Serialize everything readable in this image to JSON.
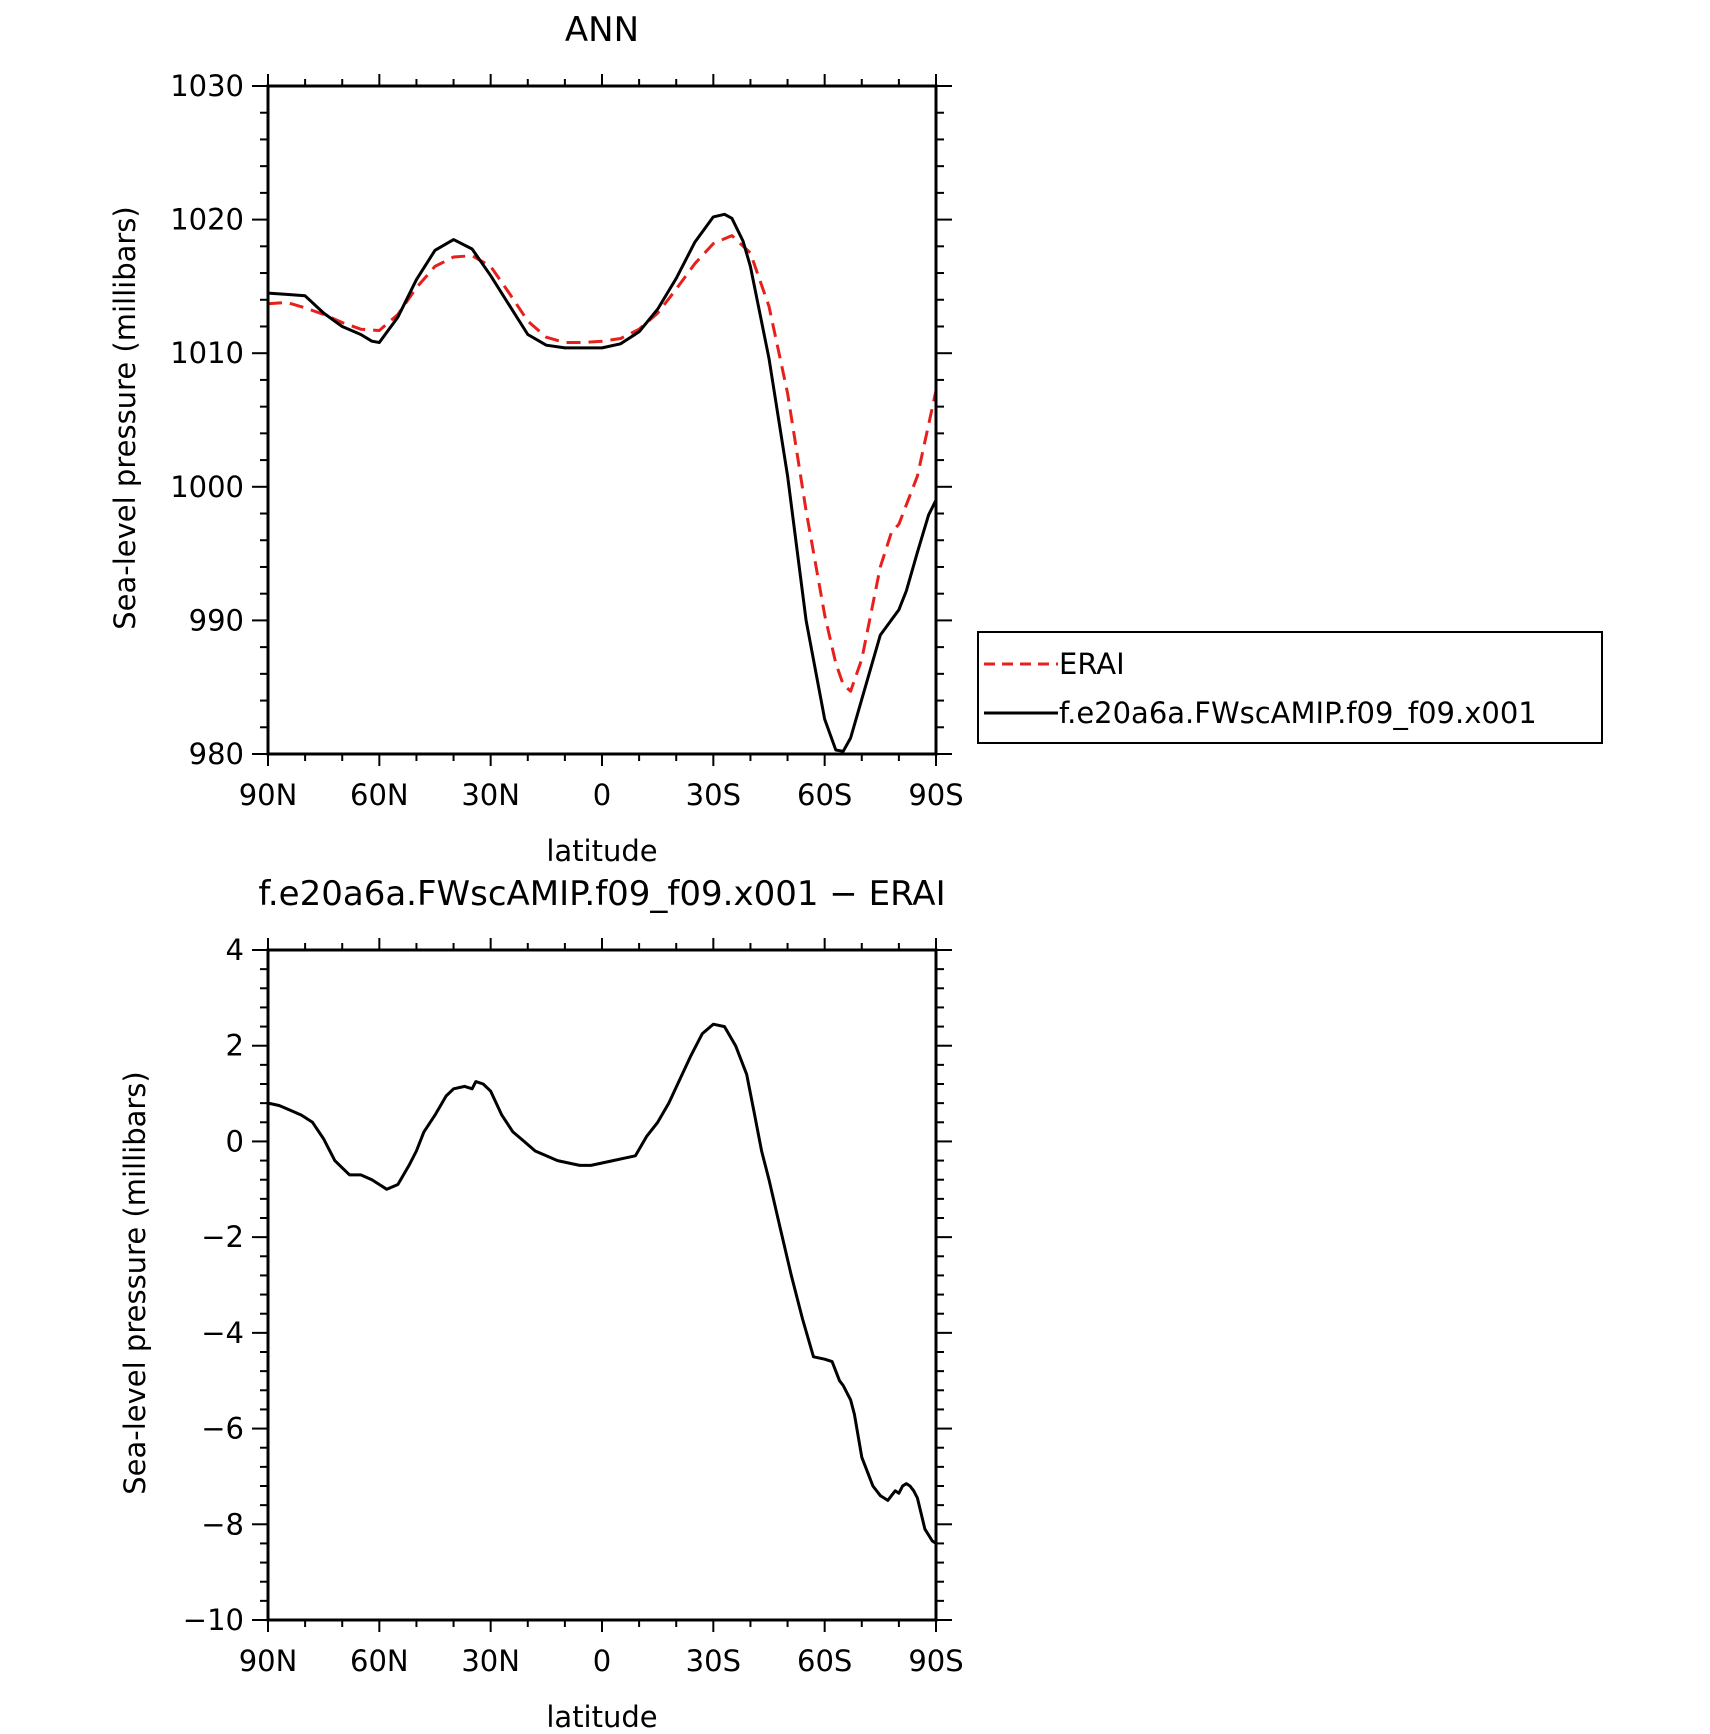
{
  "chart_data": [
    {
      "type": "line",
      "title": "ANN",
      "xlabel": "latitude",
      "ylabel": "Sea-level pressure (millibars)",
      "xlim": [
        90,
        -90
      ],
      "ylim": [
        980,
        1030
      ],
      "x_ticks": [
        90,
        60,
        30,
        0,
        -30,
        -60,
        -90
      ],
      "x_tick_labels": [
        "90N",
        "60N",
        "30N",
        "0",
        "30S",
        "60S",
        "90S"
      ],
      "y_ticks": [
        980,
        990,
        1000,
        1010,
        1020,
        1030
      ],
      "y_tick_labels": [
        "980",
        "990",
        "1000",
        "1010",
        "1020",
        "1030"
      ],
      "legend": {
        "position": "right",
        "entries": [
          "ERAI",
          "f.e20a6a.FWscAMIP.f09_f09.x001"
        ]
      },
      "grid": false,
      "series": [
        {
          "name": "ERAI",
          "color": "#e8201c",
          "dash": "dashed",
          "x": [
            90,
            85,
            80,
            75,
            70,
            65,
            60,
            55,
            50,
            45,
            40,
            35,
            30,
            25,
            20,
            15,
            10,
            5,
            0,
            -5,
            -10,
            -15,
            -20,
            -25,
            -30,
            -35,
            -40,
            -45,
            -50,
            -55,
            -60,
            -63,
            -65,
            -67,
            -70,
            -75,
            -78,
            -80,
            -85,
            -90
          ],
          "y": [
            1013.7,
            1013.8,
            1013.4,
            1012.9,
            1012.3,
            1011.8,
            1011.7,
            1012.9,
            1014.9,
            1016.5,
            1017.2,
            1017.3,
            1016.5,
            1014.5,
            1012.4,
            1011.2,
            1010.8,
            1010.8,
            1010.9,
            1011.1,
            1011.8,
            1013.0,
            1014.8,
            1016.7,
            1018.2,
            1018.8,
            1017.5,
            1013.5,
            1007.0,
            998.2,
            990.4,
            986.8,
            985.2,
            984.7,
            987.1,
            994.0,
            996.6,
            997.2,
            1000.8,
            1007.2
          ]
        },
        {
          "name": "f.e20a6a.FWscAMIP.f09_f09.x001",
          "color": "#000000",
          "dash": "solid",
          "x": [
            90,
            85,
            80,
            75,
            70,
            65,
            62,
            60,
            55,
            50,
            45,
            40,
            35,
            30,
            25,
            20,
            15,
            10,
            5,
            0,
            -5,
            -10,
            -15,
            -20,
            -25,
            -30,
            -33,
            -35,
            -38,
            -40,
            -45,
            -50,
            -55,
            -60,
            -63,
            -65,
            -67,
            -70,
            -75,
            -80,
            -82,
            -85,
            -88,
            -90
          ],
          "y": [
            1014.5,
            1014.4,
            1014.3,
            1013.0,
            1012.0,
            1011.4,
            1010.9,
            1010.8,
            1012.7,
            1015.5,
            1017.7,
            1018.5,
            1017.8,
            1015.8,
            1013.6,
            1011.4,
            1010.6,
            1010.4,
            1010.4,
            1010.4,
            1010.7,
            1011.6,
            1013.3,
            1015.6,
            1018.3,
            1020.2,
            1020.4,
            1020.1,
            1018.4,
            1016.5,
            1009.6,
            1000.8,
            990.0,
            982.6,
            980.3,
            980.2,
            981.2,
            984.1,
            988.9,
            990.8,
            992.2,
            995.1,
            997.9,
            999.0
          ]
        }
      ]
    },
    {
      "type": "line",
      "title": "f.e20a6a.FWscAMIP.f09_f09.x001 − ERAI",
      "xlabel": "latitude",
      "ylabel": "Sea-level pressure (millibars)",
      "xlim": [
        90,
        -90
      ],
      "ylim": [
        -10,
        4
      ],
      "x_ticks": [
        90,
        60,
        30,
        0,
        -30,
        -60,
        -90
      ],
      "x_tick_labels": [
        "90N",
        "60N",
        "30N",
        "0",
        "30S",
        "60S",
        "90S"
      ],
      "y_ticks": [
        -10,
        -8,
        -6,
        -4,
        -2,
        0,
        2,
        4
      ],
      "y_tick_labels": [
        "−10",
        "−8",
        "−6",
        "−4",
        "−2",
        "0",
        "2",
        "4"
      ],
      "grid": false,
      "series": [
        {
          "color": "#000000",
          "dash": "solid",
          "x": [
            90,
            87,
            84,
            81,
            78,
            75,
            72,
            70,
            68,
            65,
            62,
            60,
            58,
            55,
            52,
            50,
            48,
            45,
            42,
            40,
            37,
            35,
            34,
            32,
            30,
            27,
            24,
            21,
            18,
            15,
            12,
            9,
            6,
            3,
            0,
            -3,
            -6,
            -9,
            -12,
            -15,
            -18,
            -21,
            -24,
            -27,
            -30,
            -33,
            -36,
            -39,
            -41,
            -43,
            -45,
            -48,
            -51,
            -54,
            -57,
            -60,
            -62,
            -64,
            -65,
            -67,
            -68,
            -70,
            -72,
            -73,
            -75,
            -77,
            -78,
            -79,
            -80,
            -81,
            -82,
            -83,
            -84,
            -85,
            -87,
            -89,
            -90
          ],
          "y": [
            0.8,
            0.75,
            0.65,
            0.55,
            0.4,
            0.05,
            -0.4,
            -0.55,
            -0.7,
            -0.7,
            -0.8,
            -0.9,
            -1.0,
            -0.9,
            -0.5,
            -0.2,
            0.2,
            0.55,
            0.95,
            1.1,
            1.15,
            1.1,
            1.25,
            1.2,
            1.05,
            0.55,
            0.2,
            0.0,
            -0.2,
            -0.3,
            -0.4,
            -0.45,
            -0.5,
            -0.5,
            -0.45,
            -0.4,
            -0.35,
            -0.3,
            0.1,
            0.4,
            0.8,
            1.3,
            1.8,
            2.25,
            2.45,
            2.4,
            2.0,
            1.4,
            0.6,
            -0.2,
            -0.8,
            -1.8,
            -2.8,
            -3.7,
            -4.5,
            -4.55,
            -4.6,
            -5.0,
            -5.1,
            -5.4,
            -5.7,
            -6.6,
            -7.0,
            -7.2,
            -7.4,
            -7.5,
            -7.4,
            -7.3,
            -7.35,
            -7.2,
            -7.15,
            -7.2,
            -7.3,
            -7.45,
            -8.1,
            -8.35,
            -8.4
          ]
        }
      ]
    }
  ]
}
